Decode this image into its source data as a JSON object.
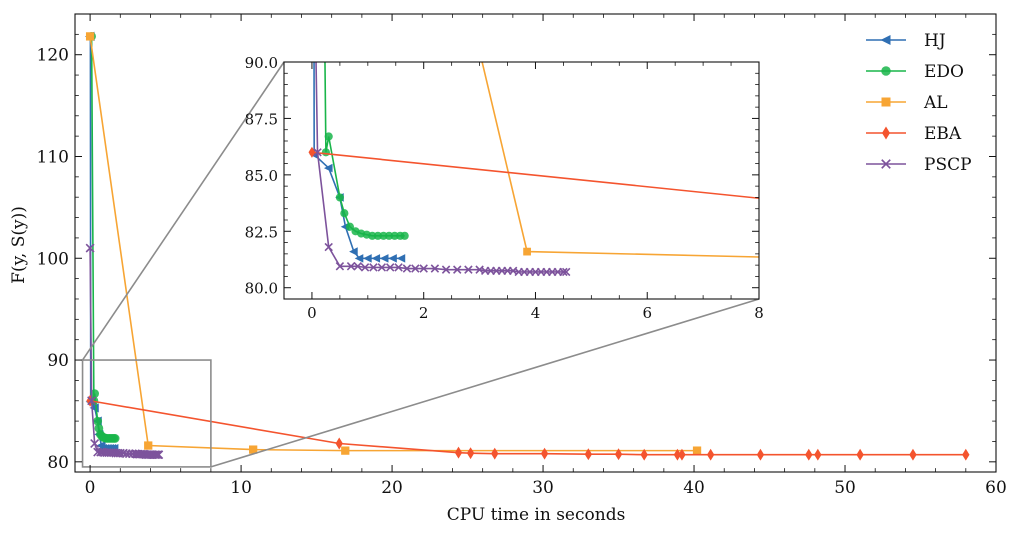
{
  "chart_data": {
    "type": "line",
    "xlabel": "CPU time in seconds",
    "ylabel": "F(y, S(y))",
    "xlim": [
      -1,
      60
    ],
    "ylim": [
      79,
      124
    ],
    "xticks": [
      0,
      10,
      20,
      30,
      40,
      50,
      60
    ],
    "yticks": [
      80,
      90,
      100,
      110,
      120
    ],
    "grid": false,
    "legend_position": "top-right",
    "series": [
      {
        "name": "HJ",
        "color": "#2f6fb3",
        "marker": "triangle-left",
        "x": [
          0.0,
          0.02,
          0.04,
          0.3,
          0.5,
          0.6,
          0.75,
          0.85,
          1.0,
          1.15,
          1.3,
          1.45,
          1.6
        ],
        "y": [
          121.8,
          121.8,
          85.9,
          85.3,
          84.0,
          82.7,
          81.6,
          81.3,
          81.3,
          81.3,
          81.3,
          81.3,
          81.3
        ]
      },
      {
        "name": "EDO",
        "color": "#19b54a",
        "marker": "circle",
        "x": [
          0.1,
          0.25,
          0.3,
          0.5,
          0.58,
          0.68,
          0.78,
          0.88,
          0.98,
          1.08,
          1.18,
          1.28,
          1.38,
          1.48,
          1.58,
          1.66
        ],
        "y": [
          121.8,
          86.0,
          86.7,
          84.0,
          83.3,
          82.7,
          82.5,
          82.4,
          82.35,
          82.3,
          82.3,
          82.3,
          82.3,
          82.3,
          82.3,
          82.3
        ],
        "markers": true
      },
      {
        "name": "AL",
        "color": "#f7a534",
        "marker": "square",
        "x": [
          0.0,
          3.85,
          10.8,
          16.9,
          40.2
        ],
        "y": [
          121.8,
          81.6,
          81.2,
          81.1,
          81.1
        ],
        "markers": true
      },
      {
        "name": "EBA",
        "color": "#f4542e",
        "marker": "diamond",
        "x": [
          0.0,
          16.5,
          24.4,
          25.2,
          26.8,
          30.1,
          33.0,
          35.0,
          36.7,
          38.9,
          39.2,
          41.1,
          44.4,
          47.6,
          48.2,
          51.0,
          54.5,
          58.0
        ],
        "y": [
          86.0,
          81.8,
          80.9,
          80.85,
          80.8,
          80.8,
          80.75,
          80.75,
          80.7,
          80.7,
          80.7,
          80.7,
          80.7,
          80.7,
          80.7,
          80.7,
          80.7,
          80.7
        ]
      },
      {
        "name": "PSCP",
        "color": "#7d539c",
        "marker": "x",
        "x": [
          0.0,
          0.1,
          0.3,
          0.5,
          0.7,
          0.82,
          0.95,
          1.1,
          1.25,
          1.4,
          1.55,
          1.7,
          1.85,
          2.0,
          2.2,
          2.4,
          2.6,
          2.8,
          3.0,
          3.1,
          3.2,
          3.3,
          3.4,
          3.5,
          3.6,
          3.7,
          3.8,
          3.9,
          4.0,
          4.1,
          4.2,
          4.3,
          4.4,
          4.5,
          4.55
        ],
        "y": [
          101.0,
          86.0,
          81.8,
          80.95,
          80.95,
          80.95,
          80.9,
          80.9,
          80.9,
          80.9,
          80.9,
          80.85,
          80.85,
          80.85,
          80.85,
          80.8,
          80.8,
          80.8,
          80.8,
          80.75,
          80.75,
          80.75,
          80.75,
          80.75,
          80.75,
          80.7,
          80.7,
          80.7,
          80.7,
          80.7,
          80.7,
          80.7,
          80.7,
          80.7,
          80.7
        ]
      }
    ],
    "inset": {
      "xlim": [
        -0.5,
        8
      ],
      "ylim": [
        79.5,
        90
      ],
      "xticks": [
        0,
        2,
        4,
        6,
        8
      ],
      "yticks": [
        80.0,
        82.5,
        85.0,
        87.5,
        90.0
      ],
      "ytick_labels": [
        "80.0",
        "82.5",
        "85.0",
        "87.5",
        "90.0"
      ]
    }
  }
}
